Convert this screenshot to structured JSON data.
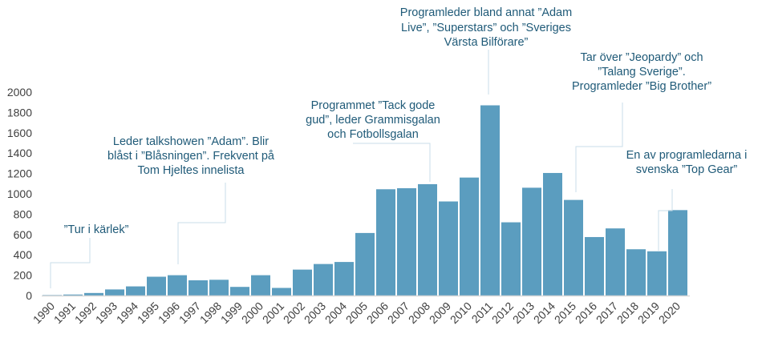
{
  "chart_data": {
    "type": "bar",
    "title": "",
    "xlabel": "",
    "ylabel": "",
    "ylim": [
      0,
      2000
    ],
    "yticks": [
      "0",
      "200",
      "400",
      "600",
      "800",
      "1000",
      "1200",
      "1400",
      "1600",
      "1800",
      "2000"
    ],
    "grid": false,
    "bar_color": "#5b9dbf",
    "text_color": "#1f5a78",
    "categories": [
      "1990",
      "1991",
      "1992",
      "1993",
      "1994",
      "1995",
      "1996",
      "1997",
      "1998",
      "1999",
      "2000",
      "2001",
      "2002",
      "2003",
      "2004",
      "2005",
      "2006",
      "2007",
      "2008",
      "2009",
      "2010",
      "2011",
      "2012",
      "2013",
      "2014",
      "2015",
      "2016",
      "2017",
      "2018",
      "2019",
      "2020"
    ],
    "values": [
      5,
      10,
      25,
      60,
      90,
      185,
      200,
      150,
      155,
      85,
      200,
      75,
      255,
      310,
      330,
      615,
      1045,
      1055,
      1095,
      925,
      1160,
      1870,
      720,
      1060,
      1205,
      940,
      575,
      660,
      455,
      435,
      840
    ],
    "annotations": [
      {
        "year": "1990",
        "lines": [
          "”Tur i kärlek”"
        ]
      },
      {
        "year": "1996",
        "lines": [
          "Leder talkshowen ”Adam”. Blir",
          "blåst i ”Blåsningen”. Frekvent på",
          "Tom Hjeltes innelista"
        ]
      },
      {
        "year": "2008",
        "lines": [
          "Programmet ”Tack gode",
          "gud”, leder Grammisgalan",
          "och Fotbollsgalan"
        ]
      },
      {
        "year": "2011",
        "lines": [
          "Programleder bland annat ”Adam",
          "Live”, ”Superstars” och ”Sveriges",
          "Värsta Bilförare”"
        ]
      },
      {
        "year": "2015",
        "lines": [
          "Tar över ”Jeopardy” och",
          "”Talang Sverige”.",
          "Programleder ”Big Brother”"
        ]
      },
      {
        "year": "2019",
        "lines": [
          "En av programledarna i",
          "svenska ”Top Gear”"
        ]
      }
    ]
  }
}
